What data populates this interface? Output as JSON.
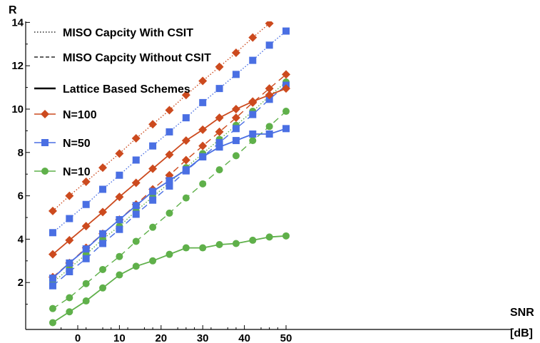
{
  "chart_data": {
    "type": "line",
    "title": "",
    "xlabel_line1": "SNR",
    "xlabel_line2": "[dB]",
    "ylabel": "R",
    "xlim": [
      -6,
      51
    ],
    "ylim": [
      0,
      14
    ],
    "xticks": [
      0,
      10,
      20,
      30,
      40,
      50
    ],
    "yticks": [
      2,
      4,
      6,
      8,
      10,
      12,
      14
    ],
    "grid": false,
    "legend_position": "top-left",
    "colors": {
      "N100": "#cc4a1e",
      "N50": "#4a6fe3",
      "N10": "#5fb04a"
    },
    "legend": [
      {
        "label": "MISO Capcity With CSIT",
        "style": "dotted"
      },
      {
        "label": "MISO Capcity Without CSIT",
        "style": "dashed"
      },
      {
        "label": "Lattice Based Schemes",
        "style": "solid"
      },
      {
        "label": "N=100",
        "marker": "diamond",
        "color": "#cc4a1e"
      },
      {
        "label": "N=50",
        "marker": "square",
        "color": "#4a6fe3"
      },
      {
        "label": "N=10",
        "marker": "circle",
        "color": "#5fb04a"
      }
    ],
    "x": [
      -6,
      -2,
      2,
      6,
      10,
      14,
      18,
      22,
      26,
      30,
      34,
      38,
      42,
      46,
      50
    ],
    "series": [
      {
        "name": "N=100",
        "scheme": "MISO Capcity With CSIT",
        "style": "dotted",
        "marker": "diamond",
        "color": "#cc4a1e",
        "values": [
          5.3,
          6.0,
          6.65,
          7.3,
          7.95,
          8.65,
          9.3,
          9.95,
          10.65,
          11.3,
          11.95,
          12.6,
          13.3,
          13.95,
          14.6
        ]
      },
      {
        "name": "N=50",
        "scheme": "MISO Capcity With CSIT",
        "style": "dotted",
        "marker": "square",
        "color": "#4a6fe3",
        "values": [
          4.3,
          4.95,
          5.6,
          6.3,
          6.95,
          7.65,
          8.3,
          8.95,
          9.6,
          10.3,
          10.95,
          11.6,
          12.25,
          12.95,
          13.6
        ]
      },
      {
        "name": "N=10",
        "scheme": "MISO Capcity With CSIT",
        "style": "dotted",
        "marker": "circle",
        "color": "#5fb04a",
        "values": [
          2.0,
          2.65,
          3.3,
          4.0,
          4.6,
          5.3,
          5.95,
          6.6,
          7.3,
          7.95,
          8.6,
          9.25,
          9.9,
          10.6,
          11.25
        ]
      },
      {
        "name": "N=100",
        "scheme": "MISO Capcity Without CSIT",
        "style": "dashed",
        "marker": "diamond",
        "color": "#cc4a1e",
        "values": [
          2.25,
          2.9,
          3.6,
          4.25,
          4.9,
          5.6,
          6.3,
          6.95,
          7.65,
          8.3,
          8.95,
          9.6,
          10.3,
          10.95,
          11.6
        ]
      },
      {
        "name": "N=50",
        "scheme": "MISO Capcity Without CSIT",
        "style": "dashed",
        "marker": "square",
        "color": "#4a6fe3",
        "values": [
          1.85,
          2.5,
          3.1,
          3.8,
          4.45,
          5.15,
          5.8,
          6.45,
          7.15,
          7.8,
          8.45,
          9.1,
          9.75,
          10.45,
          11.1
        ]
      },
      {
        "name": "N=10",
        "scheme": "MISO Capcity Without CSIT",
        "style": "dashed",
        "marker": "circle",
        "color": "#5fb04a",
        "values": [
          0.8,
          1.3,
          1.95,
          2.6,
          3.2,
          3.9,
          4.55,
          5.2,
          5.9,
          6.55,
          7.2,
          7.85,
          8.55,
          9.2,
          9.9
        ]
      },
      {
        "name": "N=100",
        "scheme": "Lattice Based Schemes",
        "style": "solid",
        "marker": "diamond",
        "color": "#cc4a1e",
        "values": [
          3.3,
          3.95,
          4.6,
          5.25,
          5.95,
          6.6,
          7.25,
          7.9,
          8.55,
          9.05,
          9.6,
          10.0,
          10.35,
          10.65,
          10.95
        ]
      },
      {
        "name": "N=50",
        "scheme": "Lattice Based Schemes",
        "style": "solid",
        "marker": "square",
        "color": "#4a6fe3",
        "values": [
          2.2,
          2.9,
          3.55,
          4.25,
          4.9,
          5.55,
          6.2,
          6.7,
          7.2,
          7.8,
          8.25,
          8.55,
          8.85,
          8.85,
          9.1
        ]
      },
      {
        "name": "N=10",
        "scheme": "Lattice Based Schemes",
        "style": "solid",
        "marker": "circle",
        "color": "#5fb04a",
        "values": [
          0.15,
          0.65,
          1.15,
          1.75,
          2.35,
          2.75,
          3.0,
          3.3,
          3.6,
          3.6,
          3.75,
          3.8,
          3.95,
          4.1,
          4.15
        ]
      }
    ]
  }
}
